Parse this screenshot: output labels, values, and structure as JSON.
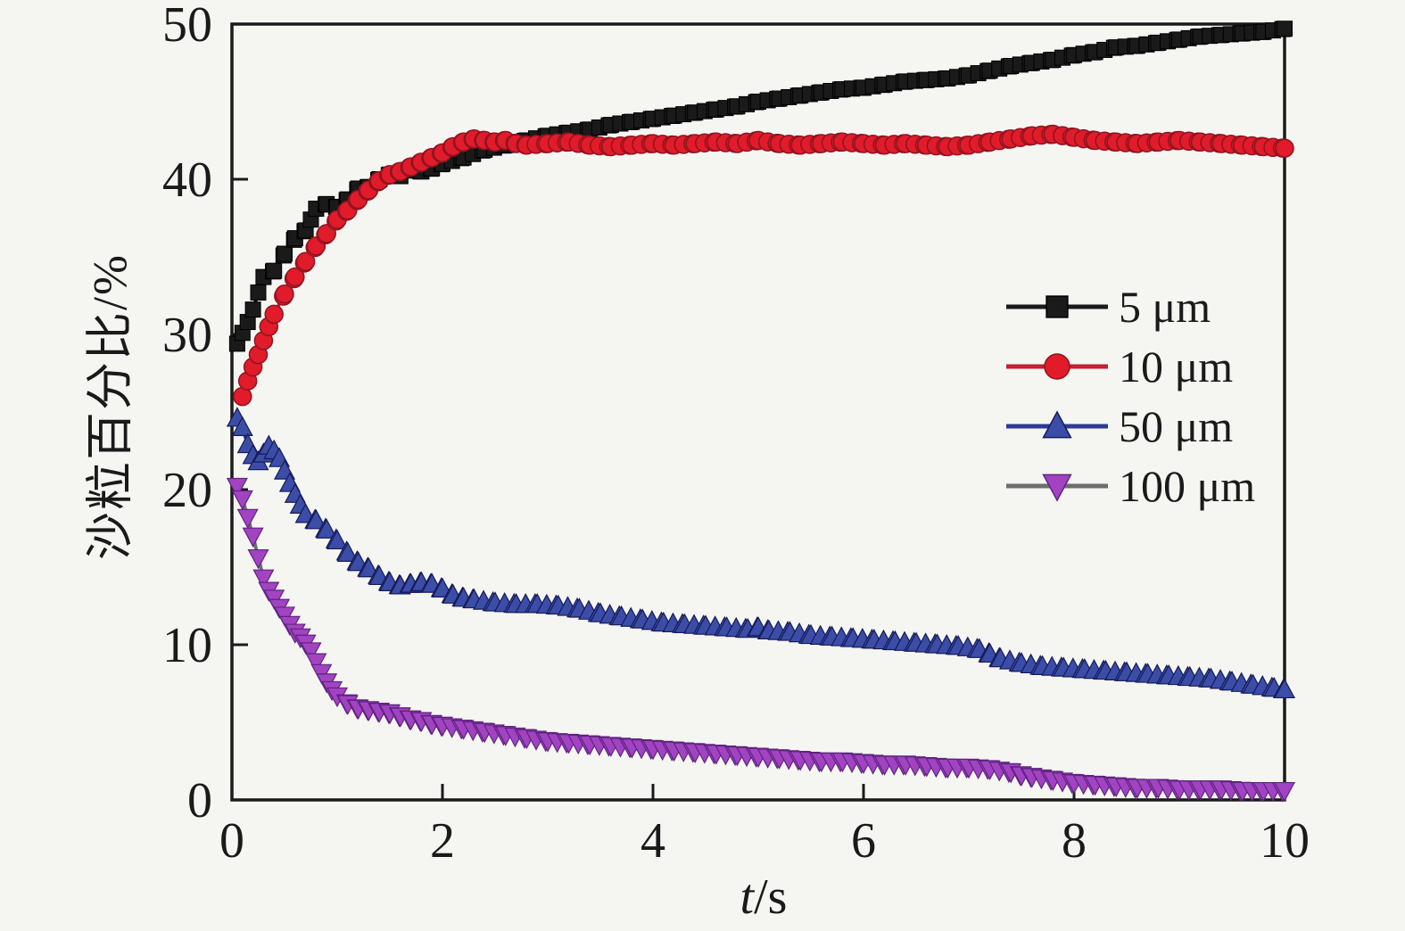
{
  "figure": {
    "background": "#f5f5f2",
    "axis_color": "#1a1a1a"
  },
  "chart_data": {
    "type": "line",
    "title": "",
    "xlabel": "t/s",
    "xlabel_var": "t",
    "xlabel_unit": "/s",
    "ylabel": "沙粒百分比/%",
    "xlim": [
      0,
      10
    ],
    "ylim": [
      0,
      50
    ],
    "x_ticks": [
      0,
      2,
      4,
      6,
      8,
      10
    ],
    "y_ticks": [
      0,
      10,
      20,
      30,
      40,
      50
    ],
    "grid": false,
    "legend_position": "upper-right-inside",
    "series": [
      {
        "name": "5 μm",
        "marker": "square",
        "marker_color": "#1a1a1a",
        "marker_edge": "#000000",
        "line_color": "#1a1a1a",
        "points": [
          [
            0.05,
            29.4
          ],
          [
            0.1,
            30.1
          ],
          [
            0.15,
            30.8
          ],
          [
            0.2,
            31.6
          ],
          [
            0.25,
            32.7
          ],
          [
            0.3,
            33.7
          ],
          [
            0.4,
            34.1
          ],
          [
            0.5,
            35.2
          ],
          [
            0.6,
            36.2
          ],
          [
            0.7,
            36.7
          ],
          [
            0.75,
            37.4
          ],
          [
            0.8,
            38.1
          ],
          [
            0.9,
            38.4
          ],
          [
            1.0,
            38.2
          ],
          [
            1.1,
            38.7
          ],
          [
            1.2,
            39.4
          ],
          [
            1.3,
            39.5
          ],
          [
            1.4,
            40.0
          ],
          [
            1.5,
            40.3
          ],
          [
            1.6,
            40.2
          ],
          [
            1.7,
            40.6
          ],
          [
            1.8,
            40.5
          ],
          [
            1.9,
            40.7
          ],
          [
            2.0,
            41.0
          ],
          [
            2.2,
            41.4
          ],
          [
            2.4,
            41.9
          ],
          [
            2.6,
            42.2
          ],
          [
            2.8,
            42.5
          ],
          [
            3.0,
            42.8
          ],
          [
            3.2,
            43.0
          ],
          [
            3.4,
            43.2
          ],
          [
            3.6,
            43.5
          ],
          [
            3.8,
            43.7
          ],
          [
            4.0,
            43.9
          ],
          [
            4.2,
            44.1
          ],
          [
            4.4,
            44.3
          ],
          [
            4.6,
            44.5
          ],
          [
            4.8,
            44.7
          ],
          [
            5.0,
            45.0
          ],
          [
            5.2,
            45.2
          ],
          [
            5.4,
            45.4
          ],
          [
            5.6,
            45.6
          ],
          [
            5.8,
            45.8
          ],
          [
            6.0,
            45.9
          ],
          [
            6.2,
            46.1
          ],
          [
            6.4,
            46.3
          ],
          [
            6.6,
            46.4
          ],
          [
            6.8,
            46.5
          ],
          [
            7.0,
            46.7
          ],
          [
            7.2,
            47.0
          ],
          [
            7.4,
            47.3
          ],
          [
            7.6,
            47.5
          ],
          [
            7.8,
            47.7
          ],
          [
            8.0,
            48.0
          ],
          [
            8.2,
            48.2
          ],
          [
            8.4,
            48.5
          ],
          [
            8.6,
            48.6
          ],
          [
            8.8,
            48.8
          ],
          [
            9.0,
            49.0
          ],
          [
            9.2,
            49.2
          ],
          [
            9.4,
            49.3
          ],
          [
            9.6,
            49.4
          ],
          [
            9.8,
            49.5
          ],
          [
            10.0,
            49.7
          ]
        ]
      },
      {
        "name": "10 μm",
        "marker": "circle",
        "marker_color": "#e11b2a",
        "marker_edge": "#8e1420",
        "line_color": "#c41f33",
        "points": [
          [
            0.1,
            26.0
          ],
          [
            0.15,
            27.0
          ],
          [
            0.2,
            27.9
          ],
          [
            0.25,
            28.7
          ],
          [
            0.3,
            29.6
          ],
          [
            0.35,
            30.5
          ],
          [
            0.4,
            31.3
          ],
          [
            0.5,
            32.6
          ],
          [
            0.6,
            33.7
          ],
          [
            0.7,
            34.7
          ],
          [
            0.8,
            35.7
          ],
          [
            0.9,
            36.5
          ],
          [
            1.0,
            37.4
          ],
          [
            1.1,
            38.0
          ],
          [
            1.2,
            38.7
          ],
          [
            1.3,
            39.3
          ],
          [
            1.4,
            39.9
          ],
          [
            1.5,
            40.3
          ],
          [
            1.6,
            40.5
          ],
          [
            1.7,
            40.8
          ],
          [
            1.8,
            41.1
          ],
          [
            1.9,
            41.4
          ],
          [
            2.0,
            41.7
          ],
          [
            2.1,
            42.1
          ],
          [
            2.2,
            42.4
          ],
          [
            2.3,
            42.6
          ],
          [
            2.4,
            42.5
          ],
          [
            2.5,
            42.4
          ],
          [
            2.6,
            42.5
          ],
          [
            2.7,
            42.3
          ],
          [
            2.8,
            42.2
          ],
          [
            3.0,
            42.3
          ],
          [
            3.2,
            42.4
          ],
          [
            3.4,
            42.2
          ],
          [
            3.6,
            42.1
          ],
          [
            3.8,
            42.2
          ],
          [
            4.0,
            42.3
          ],
          [
            4.2,
            42.2
          ],
          [
            4.4,
            42.3
          ],
          [
            4.6,
            42.4
          ],
          [
            4.8,
            42.3
          ],
          [
            5.0,
            42.5
          ],
          [
            5.2,
            42.3
          ],
          [
            5.4,
            42.2
          ],
          [
            5.6,
            42.3
          ],
          [
            5.8,
            42.4
          ],
          [
            6.0,
            42.3
          ],
          [
            6.2,
            42.2
          ],
          [
            6.4,
            42.3
          ],
          [
            6.6,
            42.2
          ],
          [
            6.8,
            42.1
          ],
          [
            7.0,
            42.2
          ],
          [
            7.2,
            42.4
          ],
          [
            7.4,
            42.6
          ],
          [
            7.6,
            42.8
          ],
          [
            7.8,
            42.9
          ],
          [
            8.0,
            42.7
          ],
          [
            8.2,
            42.5
          ],
          [
            8.4,
            42.4
          ],
          [
            8.6,
            42.3
          ],
          [
            8.8,
            42.4
          ],
          [
            9.0,
            42.5
          ],
          [
            9.2,
            42.4
          ],
          [
            9.4,
            42.3
          ],
          [
            9.6,
            42.2
          ],
          [
            9.8,
            42.1
          ],
          [
            10.0,
            42.0
          ]
        ]
      },
      {
        "name": "50 μm",
        "marker": "triangle-up",
        "marker_color": "#3c4da8",
        "marker_edge": "#141b57",
        "line_color": "#2c3b94",
        "points": [
          [
            0.05,
            24.6
          ],
          [
            0.1,
            24.0
          ],
          [
            0.15,
            22.9
          ],
          [
            0.2,
            22.2
          ],
          [
            0.25,
            21.8
          ],
          [
            0.3,
            22.3
          ],
          [
            0.35,
            22.8
          ],
          [
            0.4,
            22.5
          ],
          [
            0.45,
            22.0
          ],
          [
            0.5,
            21.2
          ],
          [
            0.55,
            20.4
          ],
          [
            0.6,
            19.7
          ],
          [
            0.65,
            19.0
          ],
          [
            0.7,
            18.4
          ],
          [
            0.8,
            18.0
          ],
          [
            0.9,
            17.4
          ],
          [
            1.0,
            16.7
          ],
          [
            1.1,
            15.9
          ],
          [
            1.2,
            15.3
          ],
          [
            1.3,
            14.9
          ],
          [
            1.4,
            14.4
          ],
          [
            1.5,
            14.0
          ],
          [
            1.6,
            13.8
          ],
          [
            1.7,
            13.9
          ],
          [
            1.8,
            14.0
          ],
          [
            1.9,
            13.9
          ],
          [
            2.0,
            13.6
          ],
          [
            2.1,
            13.2
          ],
          [
            2.2,
            13.0
          ],
          [
            2.3,
            12.9
          ],
          [
            2.5,
            12.7
          ],
          [
            2.7,
            12.6
          ],
          [
            2.9,
            12.6
          ],
          [
            3.1,
            12.5
          ],
          [
            3.3,
            12.3
          ],
          [
            3.5,
            12.0
          ],
          [
            3.7,
            11.8
          ],
          [
            3.9,
            11.6
          ],
          [
            4.1,
            11.4
          ],
          [
            4.3,
            11.3
          ],
          [
            4.5,
            11.2
          ],
          [
            4.7,
            11.1
          ],
          [
            4.9,
            11.0
          ],
          [
            5.0,
            11.1
          ],
          [
            5.1,
            10.9
          ],
          [
            5.3,
            10.8
          ],
          [
            5.5,
            10.6
          ],
          [
            5.7,
            10.5
          ],
          [
            5.9,
            10.4
          ],
          [
            6.1,
            10.3
          ],
          [
            6.3,
            10.2
          ],
          [
            6.5,
            10.1
          ],
          [
            6.7,
            10.0
          ],
          [
            6.9,
            9.9
          ],
          [
            7.1,
            9.7
          ],
          [
            7.2,
            9.4
          ],
          [
            7.3,
            9.1
          ],
          [
            7.5,
            8.8
          ],
          [
            7.7,
            8.6
          ],
          [
            7.9,
            8.5
          ],
          [
            8.1,
            8.4
          ],
          [
            8.3,
            8.3
          ],
          [
            8.5,
            8.2
          ],
          [
            8.7,
            8.1
          ],
          [
            8.9,
            8.0
          ],
          [
            9.1,
            7.9
          ],
          [
            9.3,
            7.8
          ],
          [
            9.5,
            7.6
          ],
          [
            9.7,
            7.4
          ],
          [
            9.9,
            7.2
          ],
          [
            10.0,
            7.1
          ]
        ]
      },
      {
        "name": "100 μm",
        "marker": "triangle-down",
        "marker_color": "#a243c2",
        "marker_edge": "#5f2380",
        "line_color": "#6e6e6e",
        "points": [
          [
            0.05,
            20.2
          ],
          [
            0.1,
            19.4
          ],
          [
            0.15,
            18.2
          ],
          [
            0.2,
            17.0
          ],
          [
            0.25,
            15.6
          ],
          [
            0.3,
            14.3
          ],
          [
            0.35,
            13.5
          ],
          [
            0.4,
            13.0
          ],
          [
            0.45,
            12.4
          ],
          [
            0.5,
            11.9
          ],
          [
            0.55,
            11.3
          ],
          [
            0.6,
            10.8
          ],
          [
            0.65,
            10.5
          ],
          [
            0.7,
            10.1
          ],
          [
            0.75,
            9.6
          ],
          [
            0.8,
            8.9
          ],
          [
            0.85,
            8.2
          ],
          [
            0.9,
            7.6
          ],
          [
            0.95,
            7.1
          ],
          [
            1.0,
            6.7
          ],
          [
            1.1,
            6.2
          ],
          [
            1.2,
            5.9
          ],
          [
            1.3,
            5.8
          ],
          [
            1.4,
            5.7
          ],
          [
            1.5,
            5.6
          ],
          [
            1.6,
            5.4
          ],
          [
            1.7,
            5.2
          ],
          [
            1.8,
            5.1
          ],
          [
            1.9,
            4.9
          ],
          [
            2.0,
            4.8
          ],
          [
            2.2,
            4.6
          ],
          [
            2.4,
            4.4
          ],
          [
            2.6,
            4.2
          ],
          [
            2.8,
            4.0
          ],
          [
            3.0,
            3.8
          ],
          [
            3.2,
            3.7
          ],
          [
            3.4,
            3.6
          ],
          [
            3.6,
            3.5
          ],
          [
            3.8,
            3.4
          ],
          [
            4.0,
            3.3
          ],
          [
            4.2,
            3.2
          ],
          [
            4.4,
            3.1
          ],
          [
            4.6,
            3.0
          ],
          [
            4.8,
            2.9
          ],
          [
            5.0,
            2.8
          ],
          [
            5.2,
            2.7
          ],
          [
            5.4,
            2.6
          ],
          [
            5.6,
            2.5
          ],
          [
            5.8,
            2.5
          ],
          [
            6.0,
            2.4
          ],
          [
            6.2,
            2.3
          ],
          [
            6.4,
            2.3
          ],
          [
            6.6,
            2.2
          ],
          [
            6.8,
            2.1
          ],
          [
            7.0,
            2.1
          ],
          [
            7.2,
            2.0
          ],
          [
            7.4,
            1.8
          ],
          [
            7.5,
            1.6
          ],
          [
            7.6,
            1.5
          ],
          [
            7.8,
            1.3
          ],
          [
            8.0,
            1.1
          ],
          [
            8.2,
            1.0
          ],
          [
            8.4,
            0.9
          ],
          [
            8.6,
            0.8
          ],
          [
            8.8,
            0.8
          ],
          [
            9.0,
            0.7
          ],
          [
            9.2,
            0.7
          ],
          [
            9.4,
            0.7
          ],
          [
            9.6,
            0.6
          ],
          [
            9.8,
            0.6
          ],
          [
            10.0,
            0.6
          ]
        ]
      }
    ]
  }
}
